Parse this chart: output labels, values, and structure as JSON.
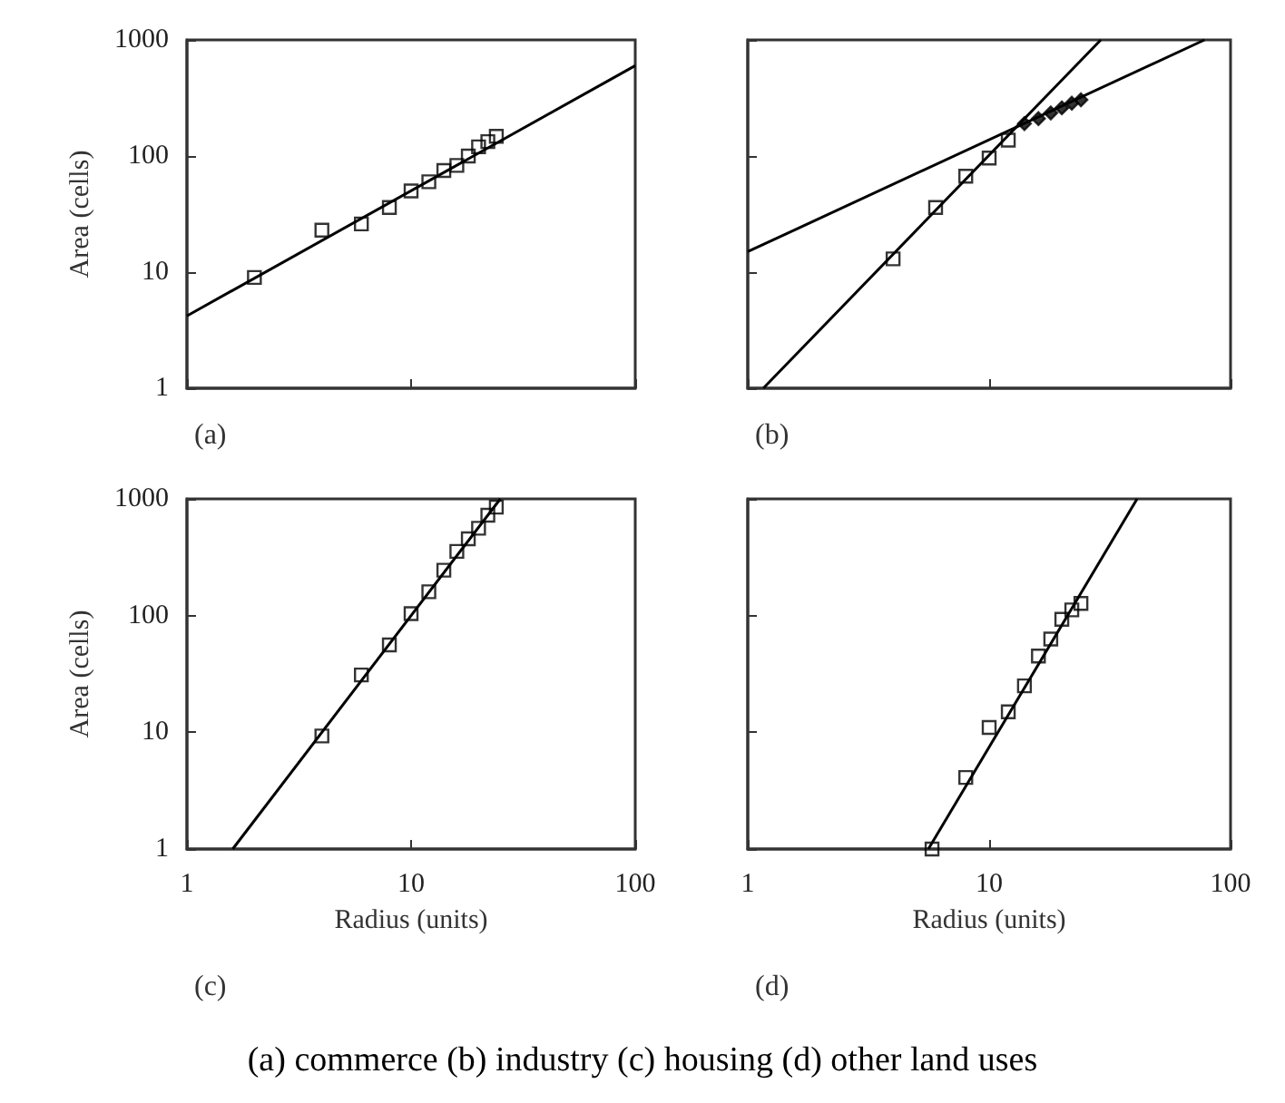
{
  "chart_data": [
    {
      "type": "scatter",
      "ylabel": "Area (cells)",
      "log": "xy",
      "xlim": [
        1,
        100
      ],
      "ylim": [
        1,
        1000
      ],
      "xticks": [
        1,
        10,
        100
      ],
      "yticks": [
        1,
        10,
        100,
        1000
      ],
      "tick_labels": "y",
      "grid": false,
      "marker": "square",
      "annotations": [
        "(a)"
      ],
      "series": [
        {
          "color": "#000000",
          "x": [
            2,
            4,
            6,
            8,
            10,
            12,
            14,
            16,
            18,
            20,
            22,
            24
          ],
          "values": [
            9,
            23,
            26,
            36,
            50,
            60,
            75,
            83,
            100,
            120,
            133,
            148
          ]
        },
        {
          "type": "line",
          "marker": "none",
          "color": "#000000",
          "x": [
            1,
            100
          ],
          "values": [
            4.2,
            600
          ]
        }
      ]
    },
    {
      "type": "scatter",
      "log": "xy",
      "xlim": [
        1,
        100
      ],
      "ylim": [
        1,
        1000
      ],
      "xticks": [
        1,
        10,
        100
      ],
      "yticks": [
        1,
        10,
        100,
        1000
      ],
      "tick_labels": false,
      "grid": false,
      "marker": "square",
      "annotations": [
        "(b)"
      ],
      "series": [
        {
          "color": "#000000",
          "x": [
            4,
            6,
            8,
            10,
            12
          ],
          "values": [
            13,
            36,
            67,
            96,
            137
          ]
        },
        {
          "marker": "diamond",
          "color": "#000000",
          "x": [
            14,
            16,
            18,
            20,
            22,
            24
          ],
          "values": [
            190,
            210,
            235,
            260,
            285,
            305
          ]
        },
        {
          "type": "line",
          "marker": "none",
          "color": "#000000",
          "x": [
            1,
            78
          ],
          "values": [
            15,
            1000
          ]
        },
        {
          "type": "line",
          "marker": "none",
          "color": "#000000",
          "x": [
            1.16,
            29
          ],
          "values": [
            1,
            1000
          ]
        }
      ]
    },
    {
      "type": "scatter",
      "xlabel": "Radius (units)",
      "ylabel": "Area (cells)",
      "log": "xy",
      "xlim": [
        1,
        100
      ],
      "ylim": [
        1,
        1000
      ],
      "xticks": [
        1,
        10,
        100
      ],
      "yticks": [
        1,
        10,
        100,
        1000
      ],
      "grid": false,
      "marker": "square",
      "annotations": [
        "(c)"
      ],
      "series": [
        {
          "color": "#000000",
          "x": [
            4,
            6,
            8,
            10,
            12,
            14,
            16,
            18,
            20,
            22,
            24
          ],
          "values": [
            9.3,
            31,
            56,
            104,
            160,
            245,
            355,
            455,
            560,
            725,
            850
          ]
        },
        {
          "type": "line",
          "marker": "none",
          "color": "#000000",
          "x": [
            1.6,
            25
          ],
          "values": [
            1,
            1000
          ]
        }
      ]
    },
    {
      "type": "scatter",
      "xlabel": "Radius (units)",
      "log": "xy",
      "xlim": [
        1,
        100
      ],
      "ylim": [
        1,
        1000
      ],
      "xticks": [
        1,
        10,
        100
      ],
      "yticks": [
        1,
        10,
        100,
        1000
      ],
      "tick_labels": "x",
      "grid": false,
      "marker": "square",
      "annotations": [
        "(d)",
        "(a) commerce (b) industry (c) housing (d) other land uses"
      ],
      "series": [
        {
          "color": "#000000",
          "x": [
            5.8,
            8,
            10,
            12,
            14,
            16,
            18,
            20,
            22,
            24
          ],
          "values": [
            1,
            4.1,
            11,
            15,
            25,
            45,
            63,
            93,
            112,
            127
          ]
        },
        {
          "type": "line",
          "marker": "none",
          "color": "#000000",
          "x": [
            5.6,
            41
          ],
          "values": [
            1,
            1000
          ]
        }
      ]
    }
  ]
}
